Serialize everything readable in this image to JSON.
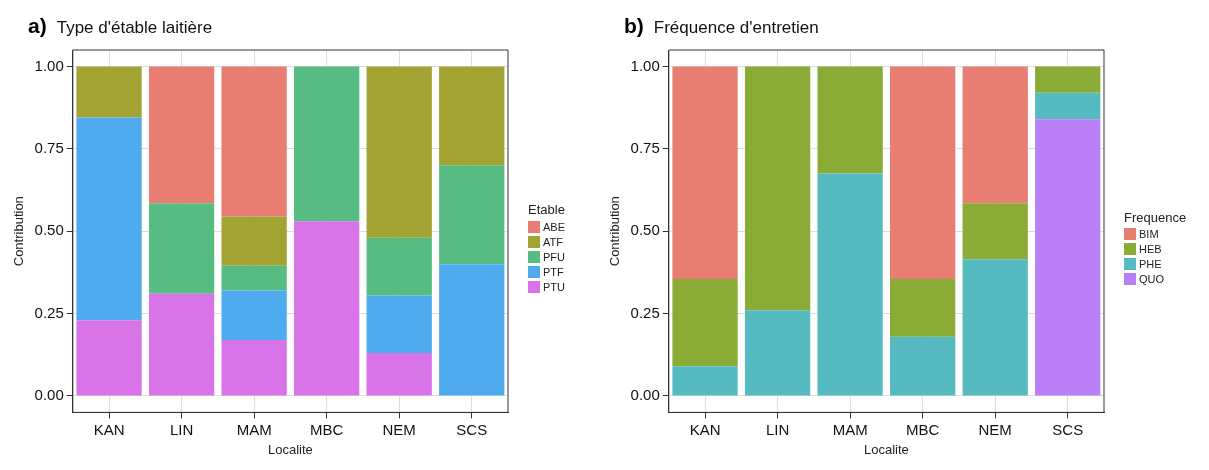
{
  "chart_data": [
    {
      "type": "bar",
      "title": "Type d'étable laitière",
      "annotations": [
        "a)"
      ],
      "xlabel": "Localite",
      "ylabel": "Contribution",
      "legend_title": "Etable",
      "legend": "right",
      "stacked": true,
      "grid": true,
      "categories": [
        "KAN",
        "LIN",
        "MAM",
        "MBC",
        "NEM",
        "SCS"
      ],
      "ylim": [
        -0.05,
        1.05
      ],
      "yticks": [
        {
          "value": 0,
          "label": "0.00"
        },
        {
          "value": 0.25,
          "label": "0.25"
        },
        {
          "value": 0.5,
          "label": "0.50"
        },
        {
          "value": 0.75,
          "label": "0.75"
        },
        {
          "value": 1,
          "label": "1.00"
        }
      ],
      "series": [
        {
          "name": "PTU",
          "color": "#d874e8",
          "values": [
            0.23,
            0.31,
            0.17,
            0.53,
            0.13,
            0
          ]
        },
        {
          "name": "PTF",
          "color": "#4fabee",
          "values": [
            0.615,
            0,
            0.15,
            0,
            0.175,
            0.4
          ]
        },
        {
          "name": "PFU",
          "color": "#56bc82",
          "values": [
            0,
            0.275,
            0.075,
            0.47,
            0.175,
            0.3
          ]
        },
        {
          "name": "ATF",
          "color": "#a3a333",
          "values": [
            0.155,
            0,
            0.15,
            0,
            0.52,
            0.3
          ]
        },
        {
          "name": "ABE",
          "color": "#e87d72",
          "values": [
            0,
            0.415,
            0.455,
            0,
            0,
            0
          ]
        }
      ]
    },
    {
      "type": "bar",
      "title": "Fréquence d'entretien",
      "annotations": [
        "b)"
      ],
      "xlabel": "Localite",
      "ylabel": "Contribution",
      "legend_title": "Frequence",
      "legend": "right",
      "stacked": true,
      "grid": true,
      "categories": [
        "KAN",
        "LIN",
        "MAM",
        "MBC",
        "NEM",
        "SCS"
      ],
      "ylim": [
        -0.05,
        1.05
      ],
      "yticks": [
        {
          "value": 0,
          "label": "0.00"
        },
        {
          "value": 0.25,
          "label": "0.25"
        },
        {
          "value": 0.5,
          "label": "0.50"
        },
        {
          "value": 0.75,
          "label": "0.75"
        },
        {
          "value": 1,
          "label": "1.00"
        }
      ],
      "series": [
        {
          "name": "QUO",
          "color": "#b97ff5",
          "values": [
            0,
            0,
            0,
            0,
            0,
            0.84
          ]
        },
        {
          "name": "PHE",
          "color": "#56bbc1",
          "values": [
            0.09,
            0.26,
            0.675,
            0.18,
            0.415,
            0.08
          ]
        },
        {
          "name": "HEB",
          "color": "#8aab35",
          "values": [
            0.265,
            0.74,
            0.325,
            0.175,
            0.17,
            0.08
          ]
        },
        {
          "name": "BIM",
          "color": "#e87d72",
          "values": [
            0.645,
            0,
            0,
            0.645,
            0.415,
            0
          ]
        }
      ]
    }
  ]
}
